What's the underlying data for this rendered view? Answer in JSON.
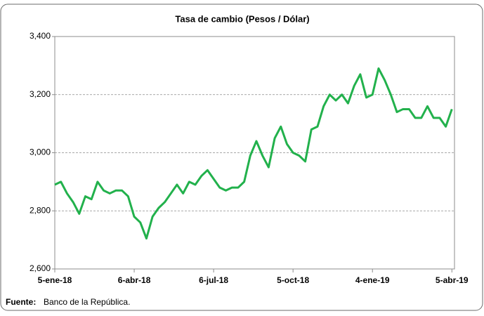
{
  "chart_data": {
    "type": "line",
    "title": "Tasa de cambio (Pesos / Dólar)",
    "x": [
      "2018-01-05",
      "2018-01-12",
      "2018-01-19",
      "2018-01-26",
      "2018-02-02",
      "2018-02-09",
      "2018-02-16",
      "2018-02-23",
      "2018-03-02",
      "2018-03-09",
      "2018-03-16",
      "2018-03-23",
      "2018-03-30",
      "2018-04-06",
      "2018-04-13",
      "2018-04-20",
      "2018-04-27",
      "2018-05-04",
      "2018-05-11",
      "2018-05-18",
      "2018-05-25",
      "2018-06-01",
      "2018-06-08",
      "2018-06-15",
      "2018-06-22",
      "2018-06-29",
      "2018-07-06",
      "2018-07-13",
      "2018-07-20",
      "2018-07-27",
      "2018-08-03",
      "2018-08-10",
      "2018-08-17",
      "2018-08-24",
      "2018-08-31",
      "2018-09-07",
      "2018-09-14",
      "2018-09-21",
      "2018-09-28",
      "2018-10-05",
      "2018-10-12",
      "2018-10-19",
      "2018-10-26",
      "2018-11-02",
      "2018-11-09",
      "2018-11-16",
      "2018-11-23",
      "2018-11-30",
      "2018-12-07",
      "2018-12-14",
      "2018-12-21",
      "2018-12-28",
      "2019-01-04",
      "2019-01-11",
      "2019-01-18",
      "2019-01-25",
      "2019-02-01",
      "2019-02-08",
      "2019-02-15",
      "2019-02-22",
      "2019-03-01",
      "2019-03-08",
      "2019-03-15",
      "2019-03-22",
      "2019-03-29",
      "2019-04-05"
    ],
    "series": [
      {
        "color": "#22b14c",
        "values": [
          2890,
          2900,
          2860,
          2830,
          2790,
          2850,
          2840,
          2900,
          2870,
          2860,
          2870,
          2870,
          2850,
          2780,
          2760,
          2705,
          2780,
          2810,
          2830,
          2860,
          2890,
          2860,
          2900,
          2890,
          2920,
          2940,
          2910,
          2880,
          2870,
          2880,
          2880,
          2900,
          2990,
          3040,
          2990,
          2950,
          3050,
          3090,
          3030,
          3000,
          2990,
          2970,
          3080,
          3090,
          3160,
          3200,
          3180,
          3200,
          3170,
          3230,
          3270,
          3190,
          3200,
          3290,
          3250,
          3200,
          3140,
          3150,
          3150,
          3120,
          3120,
          3160,
          3120,
          3120,
          3090,
          3150
        ]
      }
    ],
    "xlim": [
      "2018-01-05",
      "2019-04-08"
    ],
    "xticks": [
      {
        "value": "2018-01-05",
        "label": "5-ene-18"
      },
      {
        "value": "2018-04-06",
        "label": "6-abr-18"
      },
      {
        "value": "2018-07-06",
        "label": "6-jul-18"
      },
      {
        "value": "2018-10-05",
        "label": "5-oct-18"
      },
      {
        "value": "2019-01-04",
        "label": "4-ene-19"
      },
      {
        "value": "2019-04-05",
        "label": "5-abr-19"
      }
    ],
    "ylim": [
      2600,
      3400
    ],
    "yticks": [
      {
        "value": 2600,
        "label": "2,600"
      },
      {
        "value": 2800,
        "label": "2,800"
      },
      {
        "value": 3000,
        "label": "3,000"
      },
      {
        "value": 3200,
        "label": "3,200"
      },
      {
        "value": 3400,
        "label": "3,400"
      }
    ],
    "grid": true
  },
  "source_label": "Fuente:",
  "source_text": "Banco de la República."
}
